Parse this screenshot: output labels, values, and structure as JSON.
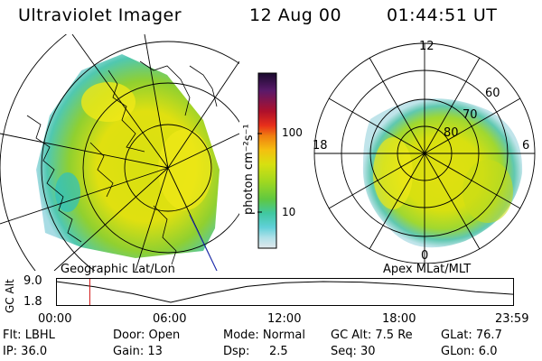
{
  "header": {
    "instrument": "Ultraviolet Imager",
    "date": "12 Aug 00",
    "time": "01:44:51 UT"
  },
  "left_panel": {
    "caption": "Geographic Lat/Lon"
  },
  "right_panel": {
    "caption": "Apex MLat/MLT",
    "mlt_labels": [
      "12",
      "18",
      "6",
      "0"
    ],
    "lat_labels": [
      "60",
      "70",
      "80"
    ]
  },
  "colorbar": {
    "unit_label": "photon cm⁻²s⁻¹",
    "ticks": [
      "100",
      "10"
    ],
    "scale": "log",
    "colors": [
      "#1a0a2e",
      "#5a1a6a",
      "#b0102a",
      "#e8301a",
      "#f08010",
      "#f4c010",
      "#d8e010",
      "#a0d820",
      "#60c840",
      "#40c8a0",
      "#60d0d8",
      "#b0e0e8",
      "#e0e8ec"
    ]
  },
  "altitude_plot": {
    "ylabel": "GC Alt",
    "y_ticks": [
      "9.0",
      "1.8"
    ],
    "x_ticks": [
      "00:00",
      "06:00",
      "12:00",
      "18:00",
      "23:59"
    ],
    "curve_hours": [
      0,
      2,
      4,
      6,
      8,
      10,
      12,
      14,
      16,
      18,
      20,
      22,
      23.98
    ],
    "curve_alt": [
      9.0,
      7.2,
      4.8,
      1.8,
      4.8,
      7.3,
      8.6,
      9.0,
      8.8,
      8.1,
      7.0,
      5.5,
      4.6
    ],
    "marker_hour": 1.75,
    "y_range": [
      1.8,
      9.0
    ],
    "x_range_hours": [
      0,
      24
    ]
  },
  "status": {
    "flt": "Flt: LBHL",
    "door": "Door: Open",
    "mode": "Mode: Normal",
    "gcalt": "GC Alt: 7.5 Re",
    "glat": "GLat:  76.7",
    "ip": "IP: 36.0",
    "gain": "Gain: 13",
    "dsp_label": "Dsp:",
    "dsp_value": "2.5",
    "seq": "Seq: 30",
    "glon": "GLon:   6.0"
  }
}
